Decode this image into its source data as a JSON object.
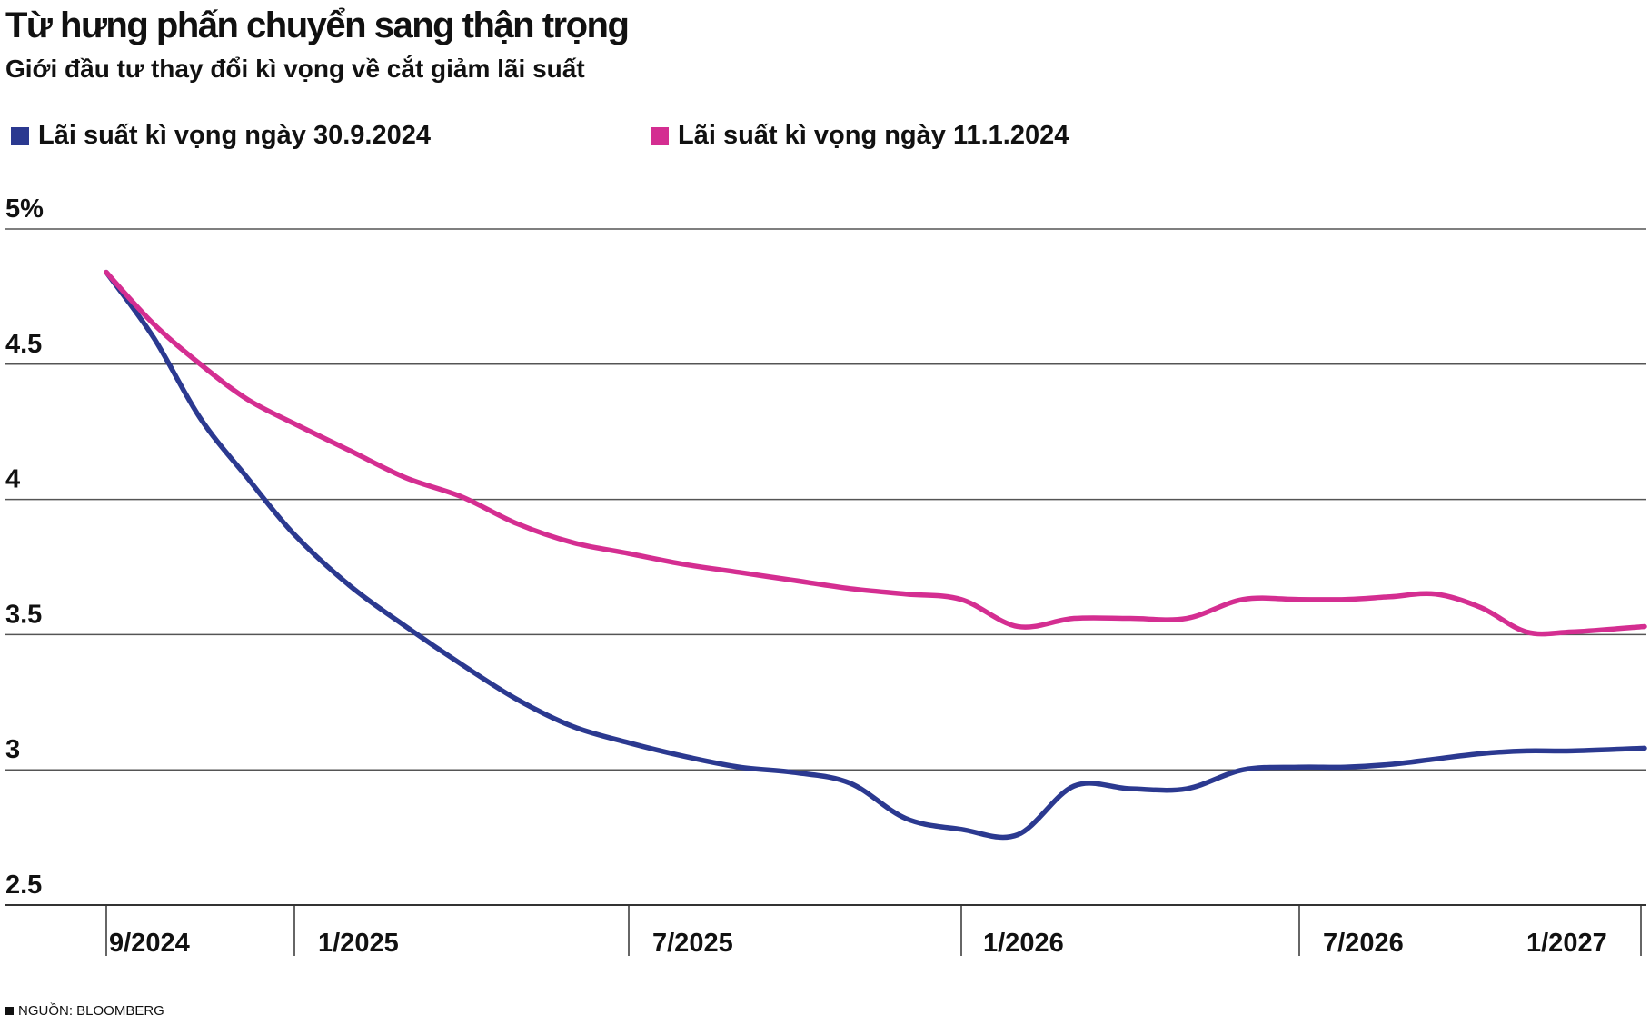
{
  "chart_data": {
    "type": "line",
    "title": "Từ hưng phấn chuyển sang thận trọng",
    "subtitle": "Giới đầu tư thay đổi kì vọng về cắt giảm lãi suất",
    "source": "NGUỒN: BLOOMBERG",
    "ylim": [
      2.5,
      5
    ],
    "y_ticks": [
      "5%",
      "4.5",
      "4",
      "3.5",
      "3",
      "2.5"
    ],
    "x_ticks": [
      "9/2024",
      "1/2025",
      "7/2025",
      "1/2026",
      "7/2026",
      "1/2027"
    ],
    "grid": true,
    "legend_position": "top",
    "series": [
      {
        "name": "Lãi suất kì vọng ngày 30.9.2024",
        "color": "#2b3990",
        "points": [
          [
            "9/2024",
            4.84
          ],
          [
            "10/2024",
            4.6
          ],
          [
            "11/2024",
            4.3
          ],
          [
            "12/2024",
            4.08
          ],
          [
            "1/2025",
            3.87
          ],
          [
            "2/2025",
            3.68
          ],
          [
            "3/2025",
            3.53
          ],
          [
            "4/2025",
            3.39
          ],
          [
            "5/2025",
            3.26
          ],
          [
            "6/2025",
            3.16
          ],
          [
            "7/2025",
            3.1
          ],
          [
            "8/2025",
            3.05
          ],
          [
            "9/2025",
            3.01
          ],
          [
            "10/2025",
            2.99
          ],
          [
            "11/2025",
            2.95
          ],
          [
            "12/2025",
            2.82
          ],
          [
            "1/2026",
            2.78
          ],
          [
            "2/2026",
            2.76
          ],
          [
            "3/2026",
            2.94
          ],
          [
            "4/2026",
            2.93
          ],
          [
            "5/2026",
            2.93
          ],
          [
            "6/2026",
            3.0
          ],
          [
            "7/2026",
            3.01
          ],
          [
            "8/2026",
            3.01
          ],
          [
            "9/2026",
            3.02
          ],
          [
            "10/2026",
            3.04
          ],
          [
            "11/2026",
            3.06
          ],
          [
            "12/2026",
            3.07
          ],
          [
            "1/2027",
            3.07
          ],
          [
            "2/2027",
            3.08
          ]
        ]
      },
      {
        "name": "Lãi suất kì vọng ngày 11.1.2024",
        "color": "#d42e91",
        "points": [
          [
            "9/2024",
            4.84
          ],
          [
            "10/2024",
            4.65
          ],
          [
            "11/2024",
            4.5
          ],
          [
            "12/2024",
            4.37
          ],
          [
            "1/2025",
            4.28
          ],
          [
            "2/2025",
            4.18
          ],
          [
            "3/2025",
            4.08
          ],
          [
            "4/2025",
            4.01
          ],
          [
            "5/2025",
            3.91
          ],
          [
            "6/2025",
            3.84
          ],
          [
            "7/2025",
            3.8
          ],
          [
            "8/2025",
            3.76
          ],
          [
            "9/2025",
            3.73
          ],
          [
            "10/2025",
            3.7
          ],
          [
            "11/2025",
            3.67
          ],
          [
            "12/2025",
            3.65
          ],
          [
            "1/2026",
            3.63
          ],
          [
            "2/2026",
            3.53
          ],
          [
            "3/2026",
            3.56
          ],
          [
            "4/2026",
            3.56
          ],
          [
            "5/2026",
            3.56
          ],
          [
            "6/2026",
            3.63
          ],
          [
            "7/2026",
            3.63
          ],
          [
            "8/2026",
            3.63
          ],
          [
            "9/2026",
            3.64
          ],
          [
            "10/2026",
            3.65
          ],
          [
            "11/2026",
            3.6
          ],
          [
            "12/2026",
            3.51
          ],
          [
            "1/2027",
            3.51
          ],
          [
            "2/2027",
            3.53
          ]
        ]
      }
    ]
  }
}
